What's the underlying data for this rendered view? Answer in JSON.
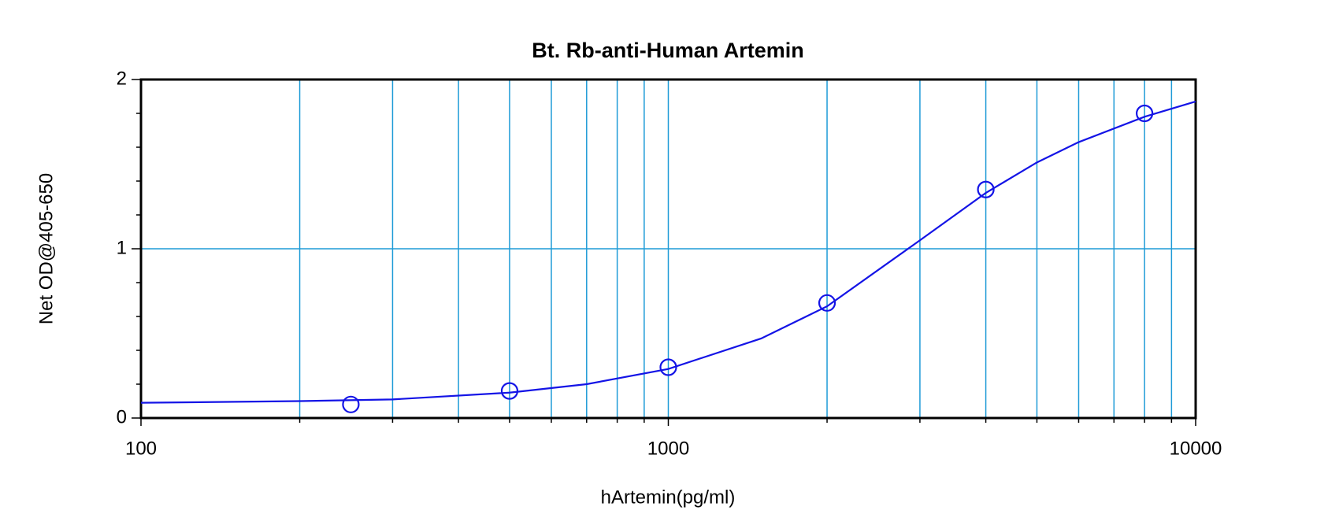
{
  "chart_data": {
    "type": "scatter",
    "title": "Bt. Rb-anti-Human Artemin",
    "x_label": "hArtemin(pg/ml)",
    "y_label": "Net OD@405-650",
    "xscale": "log",
    "xlim": [
      100,
      10000
    ],
    "xticks": [
      100,
      1000,
      10000
    ],
    "xgrid": [
      200,
      300,
      400,
      500,
      600,
      700,
      800,
      900,
      2000,
      3000,
      4000,
      5000,
      6000,
      7000,
      8000,
      9000
    ],
    "ylim": [
      0,
      2
    ],
    "yticks": [
      0,
      1,
      2
    ],
    "yminor": [
      0.2,
      0.4,
      0.6,
      0.8,
      1.2,
      1.4,
      1.6,
      1.8
    ],
    "grid": true,
    "grid_color": "#1e9bd7",
    "series": [
      {
        "type": "line",
        "color": "#1414e6",
        "x": [
          100,
          200,
          300,
          500,
          700,
          1000,
          1500,
          2000,
          3000,
          4000,
          5000,
          6000,
          8000,
          10000
        ],
        "values": [
          0.09,
          0.1,
          0.11,
          0.15,
          0.2,
          0.29,
          0.47,
          0.66,
          1.05,
          1.33,
          1.51,
          1.63,
          1.78,
          1.87
        ]
      },
      {
        "type": "scatter",
        "color": "#1414e6",
        "x": [
          250,
          500,
          1000,
          2000,
          4000,
          8000
        ],
        "values": [
          0.08,
          0.16,
          0.3,
          0.68,
          1.35,
          1.8
        ]
      }
    ]
  }
}
